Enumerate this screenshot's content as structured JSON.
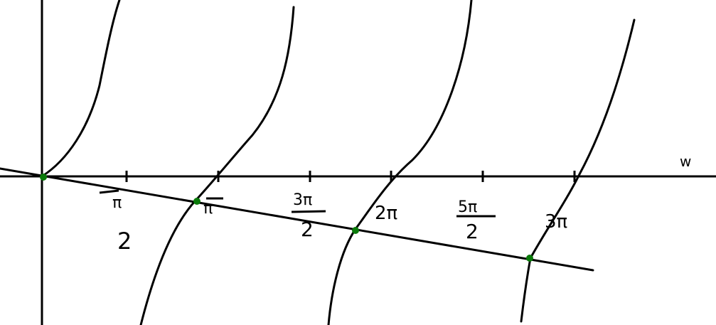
{
  "sketch": {
    "stroke_color": "#000000",
    "marker_color": "#0a7a0a",
    "axis_label": "w",
    "tick_labels": [
      {
        "num": "π",
        "den": "2"
      },
      {
        "num": "π",
        "den": ""
      },
      {
        "num": "3π",
        "den": "2"
      },
      {
        "num": "2π",
        "den": ""
      },
      {
        "num": "5π",
        "den": "2"
      },
      {
        "num": "3π",
        "den": ""
      }
    ]
  }
}
